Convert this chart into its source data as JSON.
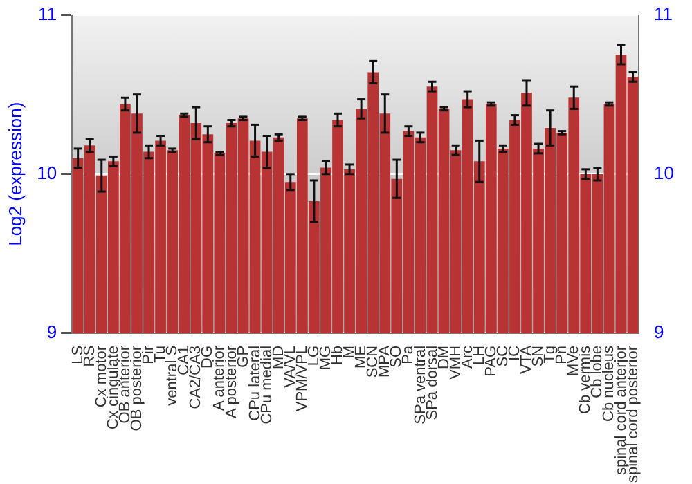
{
  "chart_data": {
    "type": "bar",
    "ylabel": "Log2 (expression)",
    "categories": [
      "LS",
      "RS",
      "Cx motor",
      "Cx cingulate",
      "OB anterior",
      "OB posterior",
      "Pir",
      "Tu",
      "ventral S",
      "CA1",
      "CA2/CA3",
      "DG",
      "A anterior",
      "A posterior",
      "GP",
      "CPu lateral",
      "CPu medial",
      "MD",
      "VA/VL",
      "VPM/VPL",
      "LG",
      "MG",
      "Hb",
      "M",
      "ME",
      "SCN",
      "MPA",
      "SO",
      "Pa",
      "SPa ventral",
      "SPa dorsal",
      "DM",
      "VMH",
      "Arc",
      "LH",
      "PAG",
      "SC",
      "IC",
      "VTA",
      "SN",
      "Tg",
      "Pn",
      "MVe",
      "Cb vermis",
      "Cb lobe",
      "Cb nucleus",
      "spinal cord anterior",
      "spinal cord posterior"
    ],
    "values": [
      10.1,
      10.18,
      9.99,
      10.08,
      10.44,
      10.38,
      10.14,
      10.21,
      10.15,
      10.37,
      10.32,
      10.25,
      10.13,
      10.32,
      10.35,
      10.21,
      10.14,
      10.23,
      9.95,
      10.35,
      9.83,
      10.04,
      10.34,
      10.03,
      10.41,
      10.64,
      10.38,
      9.97,
      10.27,
      10.23,
      10.55,
      10.41,
      10.15,
      10.47,
      10.08,
      10.44,
      10.16,
      10.34,
      10.51,
      10.16,
      10.29,
      10.26,
      10.48,
      10.0,
      10.0,
      10.44,
      10.75,
      10.61
    ],
    "errors": [
      0.06,
      0.04,
      0.1,
      0.03,
      0.04,
      0.12,
      0.04,
      0.03,
      0.01,
      0.01,
      0.1,
      0.05,
      0.01,
      0.02,
      0.01,
      0.1,
      0.1,
      0.02,
      0.05,
      0.01,
      0.13,
      0.04,
      0.04,
      0.03,
      0.06,
      0.07,
      0.12,
      0.12,
      0.03,
      0.03,
      0.03,
      0.01,
      0.03,
      0.05,
      0.13,
      0.01,
      0.02,
      0.03,
      0.08,
      0.03,
      0.11,
      0.01,
      0.07,
      0.03,
      0.04,
      0.01,
      0.06,
      0.03
    ],
    "color": "#b83434",
    "ylim": [
      9,
      11
    ],
    "yticks": [
      9,
      10,
      11
    ],
    "y2lim": [
      9,
      11
    ],
    "y2ticks": [
      9,
      10,
      11
    ],
    "grid": "y",
    "legend": false
  }
}
